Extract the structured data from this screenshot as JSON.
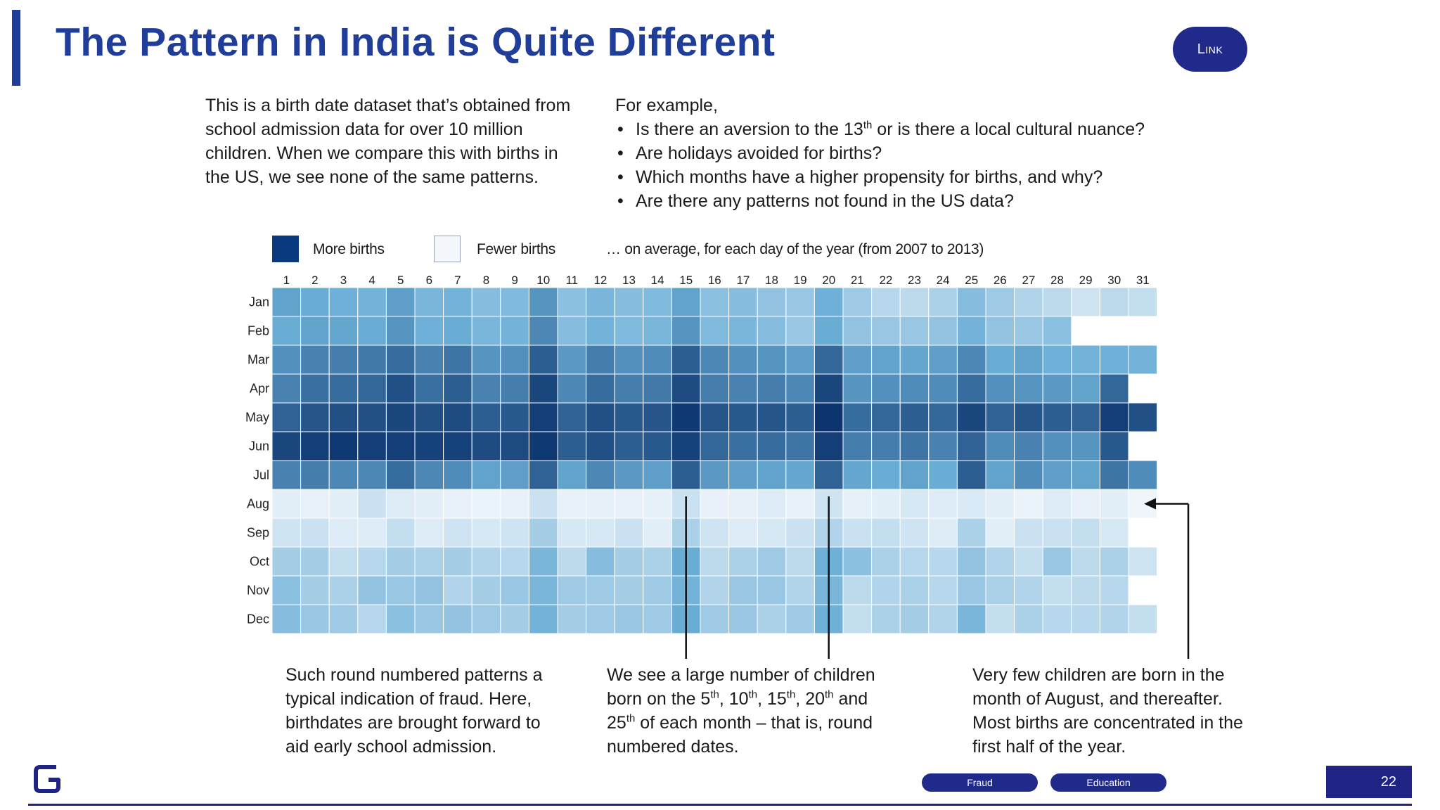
{
  "slide": {
    "title": "The Pattern in India is Quite Different",
    "link_label": "Link",
    "intro": "This is a birth date dataset that’s obtained from school admission data for over 10 million children. When we compare this with births in the US, we see none of the same patterns.",
    "example_heading": "For example,",
    "bullets": [
      {
        "pre": "Is there an aversion to the 13",
        "sup": "th",
        "post": " or is there a local cultural nuance?"
      },
      {
        "pre": "Are holidays avoided for births?"
      },
      {
        "pre": "Which months have a higher propensity for births, and why?"
      },
      {
        "pre": "Are there any patterns not found in the US data?"
      }
    ],
    "legend": {
      "more": "More births",
      "fewer": "Fewer births",
      "caption": "… on average, for each day of the year (from 2007 to 2013)"
    },
    "notes": {
      "fraud": "Such round numbered patterns a typical indication of fraud. Here, birthdates are brought forward to aid early school admission.",
      "round": [
        {
          "t": "We see a large number of children born on the 5"
        },
        {
          "t": "th",
          "sup": true
        },
        {
          "t": ", 10"
        },
        {
          "t": "th",
          "sup": true
        },
        {
          "t": ", 15"
        },
        {
          "t": "th",
          "sup": true
        },
        {
          "t": ", 20"
        },
        {
          "t": "th",
          "sup": true
        },
        {
          "t": " and 25"
        },
        {
          "t": "th",
          "sup": true
        },
        {
          "t": " of each month – that is, round numbered dates."
        }
      ],
      "august": "Very few children are born in the month of August, and thereafter. Most births are concentrated in the first half of the year."
    },
    "tags": [
      "Fraud",
      "Education"
    ],
    "page_number": "22"
  },
  "colors": {
    "title": "#1f3d99",
    "accent_dark": "#1f2383",
    "heat_low": "#f4f8fd",
    "heat_high": "#08306b"
  },
  "chart_data": {
    "type": "heatmap",
    "title": "",
    "x_label": "",
    "y_label": "",
    "x_ticks": [
      "1",
      "2",
      "3",
      "4",
      "5",
      "6",
      "7",
      "8",
      "9",
      "10",
      "11",
      "12",
      "13",
      "14",
      "15",
      "16",
      "17",
      "18",
      "19",
      "20",
      "21",
      "22",
      "23",
      "24",
      "25",
      "26",
      "27",
      "28",
      "29",
      "30",
      "31"
    ],
    "y_ticks": [
      "Jan",
      "Feb",
      "Mar",
      "Apr",
      "May",
      "Jun",
      "Jul",
      "Aug",
      "Sep",
      "Oct",
      "Nov",
      "Dec"
    ],
    "value_scale": "relative birth frequency (0 = fewer births, 1 = more births)",
    "values": [
      [
        0.5,
        0.46,
        0.44,
        0.42,
        0.52,
        0.4,
        0.42,
        0.36,
        0.38,
        0.56,
        0.34,
        0.4,
        0.36,
        0.38,
        0.5,
        0.34,
        0.36,
        0.32,
        0.3,
        0.44,
        0.28,
        0.2,
        0.18,
        0.24,
        0.36,
        0.28,
        0.22,
        0.18,
        0.12,
        0.18,
        0.16
      ],
      [
        0.46,
        0.5,
        0.48,
        0.46,
        0.56,
        0.44,
        0.46,
        0.4,
        0.42,
        0.62,
        0.36,
        0.42,
        0.38,
        0.4,
        0.56,
        0.38,
        0.4,
        0.36,
        0.3,
        0.46,
        0.32,
        0.3,
        0.3,
        0.32,
        0.42,
        0.32,
        0.3,
        0.34,
        null,
        null,
        null
      ],
      [
        0.58,
        0.64,
        0.66,
        0.68,
        0.74,
        0.64,
        0.7,
        0.56,
        0.58,
        0.8,
        0.54,
        0.66,
        0.58,
        0.6,
        0.8,
        0.62,
        0.58,
        0.56,
        0.52,
        0.76,
        0.52,
        0.5,
        0.48,
        0.52,
        0.62,
        0.46,
        0.5,
        0.44,
        0.42,
        0.44,
        0.42
      ],
      [
        0.64,
        0.72,
        0.74,
        0.76,
        0.86,
        0.72,
        0.8,
        0.64,
        0.66,
        0.9,
        0.62,
        0.74,
        0.66,
        0.68,
        0.88,
        0.66,
        0.64,
        0.66,
        0.62,
        0.9,
        0.56,
        0.58,
        0.6,
        0.6,
        0.74,
        0.58,
        0.56,
        0.54,
        0.5,
        0.76,
        null
      ],
      [
        0.78,
        0.84,
        0.86,
        0.86,
        0.9,
        0.86,
        0.88,
        0.8,
        0.82,
        0.94,
        0.78,
        0.86,
        0.82,
        0.84,
        0.96,
        0.84,
        0.82,
        0.84,
        0.8,
        0.98,
        0.74,
        0.76,
        0.8,
        0.76,
        0.9,
        0.78,
        0.84,
        0.8,
        0.78,
        0.94,
        0.86
      ],
      [
        0.9,
        0.94,
        0.96,
        0.94,
        0.94,
        0.92,
        0.92,
        0.88,
        0.88,
        0.96,
        0.8,
        0.86,
        0.8,
        0.82,
        0.92,
        0.76,
        0.72,
        0.74,
        0.7,
        0.94,
        0.66,
        0.66,
        0.7,
        0.64,
        0.78,
        0.6,
        0.64,
        0.58,
        0.56,
        0.82,
        null
      ],
      [
        0.64,
        0.66,
        0.62,
        0.62,
        0.74,
        0.62,
        0.6,
        0.5,
        0.52,
        0.78,
        0.5,
        0.62,
        0.54,
        0.52,
        0.8,
        0.54,
        0.52,
        0.5,
        0.48,
        0.78,
        0.48,
        0.46,
        0.5,
        0.46,
        0.8,
        0.5,
        0.6,
        0.52,
        0.5,
        0.7,
        0.6
      ],
      [
        0.06,
        0.04,
        0.06,
        0.14,
        0.08,
        0.06,
        0.04,
        0.03,
        0.04,
        0.14,
        0.04,
        0.05,
        0.04,
        0.05,
        0.14,
        0.04,
        0.05,
        0.08,
        0.04,
        0.12,
        0.05,
        0.06,
        0.1,
        0.08,
        0.09,
        0.06,
        0.03,
        0.08,
        0.04,
        0.06,
        0.02
      ],
      [
        0.12,
        0.14,
        0.08,
        0.08,
        0.16,
        0.08,
        0.12,
        0.1,
        0.12,
        0.26,
        0.1,
        0.1,
        0.14,
        0.06,
        0.24,
        0.12,
        0.08,
        0.1,
        0.14,
        0.22,
        0.14,
        0.16,
        0.12,
        0.08,
        0.24,
        0.06,
        0.14,
        0.14,
        0.16,
        0.1,
        null
      ],
      [
        0.26,
        0.26,
        0.16,
        0.2,
        0.26,
        0.24,
        0.26,
        0.22,
        0.2,
        0.4,
        0.18,
        0.36,
        0.26,
        0.24,
        0.46,
        0.18,
        0.24,
        0.28,
        0.18,
        0.44,
        0.34,
        0.24,
        0.2,
        0.2,
        0.32,
        0.22,
        0.16,
        0.3,
        0.18,
        0.24,
        0.12
      ],
      [
        0.34,
        0.26,
        0.24,
        0.32,
        0.3,
        0.32,
        0.22,
        0.26,
        0.3,
        0.4,
        0.28,
        0.28,
        0.26,
        0.28,
        0.42,
        0.22,
        0.3,
        0.3,
        0.22,
        0.4,
        0.18,
        0.22,
        0.24,
        0.2,
        0.3,
        0.24,
        0.22,
        0.16,
        0.18,
        0.2,
        null
      ],
      [
        0.36,
        0.3,
        0.28,
        0.2,
        0.34,
        0.3,
        0.32,
        0.28,
        0.26,
        0.42,
        0.26,
        0.28,
        0.3,
        0.28,
        0.46,
        0.28,
        0.3,
        0.24,
        0.28,
        0.44,
        0.16,
        0.24,
        0.26,
        0.22,
        0.4,
        0.16,
        0.24,
        0.2,
        0.2,
        0.22,
        0.16
      ]
    ],
    "legend": [
      "More births",
      "Fewer births"
    ],
    "grid": true
  }
}
